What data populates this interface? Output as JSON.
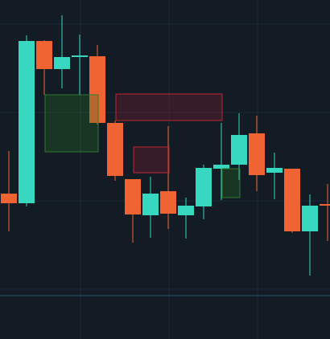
{
  "chart_data": {
    "type": "candlestick",
    "categories": [
      null,
      null,
      null,
      null,
      null,
      null,
      null,
      null,
      null,
      null,
      null,
      null,
      null,
      null,
      null,
      null,
      null,
      null,
      null
    ],
    "open": [
      181,
      169,
      371,
      336,
      351,
      352,
      269,
      199,
      154,
      184,
      154,
      165,
      212,
      217,
      256,
      207,
      212,
      134,
      168
    ],
    "close": [
      169,
      371,
      336,
      351,
      353,
      269,
      203,
      155,
      181,
      156,
      166,
      213,
      217,
      254,
      204,
      213,
      134,
      166,
      166
    ],
    "high": [
      234,
      378,
      372,
      403,
      379,
      366,
      272,
      199,
      202,
      265,
      176,
      217,
      269,
      281,
      278,
      232,
      212,
      180,
      193
    ],
    "low": [
      134,
      165,
      304,
      312,
      304,
      267,
      197,
      120,
      126,
      137,
      125,
      149,
      173,
      198,
      184,
      174,
      132,
      79,
      122
    ],
    "up_color": "#37d8bf",
    "down_color": "#ef6432",
    "ylim": [
      0,
      422
    ]
  }
}
